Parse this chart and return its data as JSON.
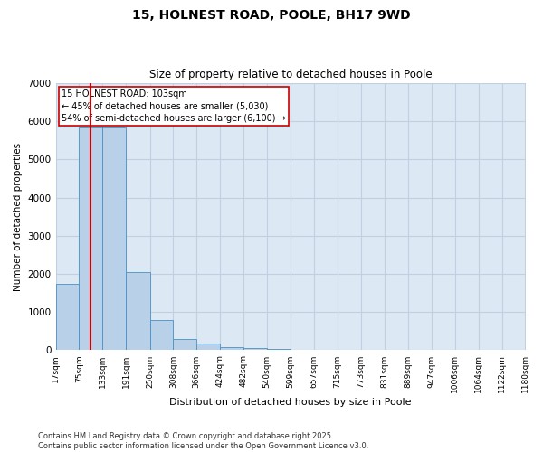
{
  "title_line1": "15, HOLNEST ROAD, POOLE, BH17 9WD",
  "title_line2": "Size of property relative to detached houses in Poole",
  "xlabel": "Distribution of detached houses by size in Poole",
  "ylabel": "Number of detached properties",
  "bin_edges": [
    17,
    75,
    133,
    191,
    250,
    308,
    366,
    424,
    482,
    540,
    599,
    657,
    715,
    773,
    831,
    889,
    947,
    1006,
    1064,
    1122,
    1180
  ],
  "bar_heights": [
    1750,
    5850,
    5850,
    2050,
    800,
    290,
    170,
    80,
    50,
    30,
    20,
    10,
    5,
    2,
    1,
    0,
    0,
    0,
    0,
    0
  ],
  "bar_facecolor": "#b8d0e8",
  "bar_edgecolor": "#4a90c4",
  "bar_alpha": 1.0,
  "grid_color": "#c0d0e0",
  "bg_color": "#dce8f4",
  "red_line_x": 103,
  "red_line_color": "#cc0000",
  "annotation_title": "15 HOLNEST ROAD: 103sqm",
  "annotation_line1": "← 45% of detached houses are smaller (5,030)",
  "annotation_line2": "54% of semi-detached houses are larger (6,100) →",
  "annotation_box_edgecolor": "#cc0000",
  "annotation_box_facecolor": "#ffffff",
  "ylim": [
    0,
    7000
  ],
  "yticks": [
    0,
    1000,
    2000,
    3000,
    4000,
    5000,
    6000,
    7000
  ],
  "footnote_line1": "Contains HM Land Registry data © Crown copyright and database right 2025.",
  "footnote_line2": "Contains public sector information licensed under the Open Government Licence v3.0."
}
